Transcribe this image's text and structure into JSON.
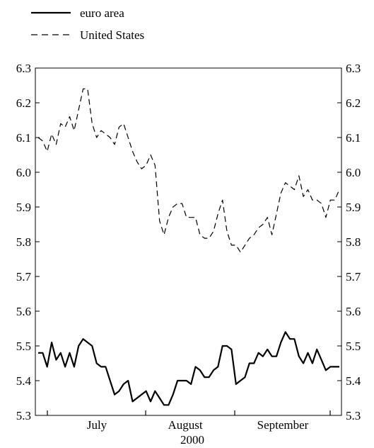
{
  "chart_data": {
    "type": "line",
    "xlabel": "2000",
    "x_tick_labels": [
      "July",
      "August",
      "September"
    ],
    "ylim": [
      5.3,
      6.3
    ],
    "y_ticks": [
      "5.3",
      "5.4",
      "5.5",
      "5.6",
      "5.7",
      "5.8",
      "5.9",
      "6.0",
      "6.1",
      "6.2",
      "6.3"
    ],
    "grid": false,
    "legend_position": "top-left",
    "series": [
      {
        "name": "euro area",
        "style": "solid",
        "values": [
          5.48,
          5.48,
          5.44,
          5.51,
          5.46,
          5.48,
          5.44,
          5.48,
          5.44,
          5.5,
          5.52,
          5.51,
          5.5,
          5.45,
          5.44,
          5.44,
          5.4,
          5.36,
          5.37,
          5.39,
          5.4,
          5.34,
          5.35,
          5.36,
          5.37,
          5.34,
          5.37,
          5.35,
          5.33,
          5.33,
          5.36,
          5.4,
          5.4,
          5.4,
          5.39,
          5.44,
          5.43,
          5.41,
          5.41,
          5.43,
          5.44,
          5.5,
          5.5,
          5.49,
          5.39,
          5.4,
          5.41,
          5.45,
          5.45,
          5.48,
          5.47,
          5.49,
          5.47,
          5.47,
          5.51,
          5.54,
          5.52,
          5.52,
          5.47,
          5.45,
          5.48,
          5.45,
          5.49,
          5.46,
          5.43,
          5.44,
          5.44,
          5.44
        ]
      },
      {
        "name": "United States",
        "style": "dashed",
        "values": [
          6.1,
          6.09,
          6.06,
          6.11,
          6.08,
          6.14,
          6.13,
          6.16,
          6.12,
          6.18,
          6.24,
          6.24,
          6.14,
          6.1,
          6.12,
          6.11,
          6.1,
          6.08,
          6.13,
          6.14,
          6.1,
          6.06,
          6.03,
          6.01,
          6.02,
          6.05,
          6.02,
          5.86,
          5.82,
          5.87,
          5.9,
          5.91,
          5.91,
          5.87,
          5.87,
          5.87,
          5.82,
          5.81,
          5.81,
          5.83,
          5.88,
          5.92,
          5.83,
          5.79,
          5.79,
          5.77,
          5.79,
          5.81,
          5.82,
          5.84,
          5.85,
          5.87,
          5.82,
          5.88,
          5.94,
          5.97,
          5.96,
          5.95,
          5.99,
          5.93,
          5.95,
          5.92,
          5.92,
          5.91,
          5.87,
          5.92,
          5.92,
          5.95
        ]
      }
    ]
  }
}
